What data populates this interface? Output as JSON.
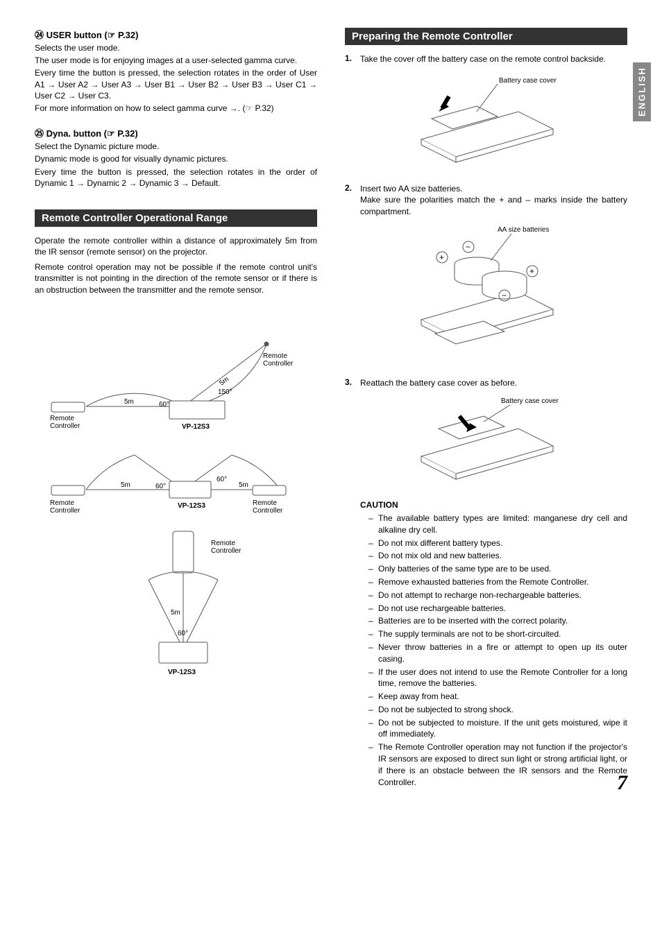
{
  "language_tab": "ENGLISH",
  "page_number": "7",
  "left": {
    "user": {
      "num": "㉔",
      "title_pre": "USER button (☞",
      "title_page": " P.32)",
      "lines": [
        "Selects the user mode.",
        "The user mode is for enjoying images at a user-selected gamma curve.",
        "Every time the button is pressed, the selection rotates in the order of User A1 → User A2 → User A3 → User B1 → User B2 → User B3 → User C1 → User C2 → User C3.",
        "For more information on how to select gamma curve →. (☞ P.32)"
      ]
    },
    "dyna": {
      "num": "㉕",
      "title_pre": "Dyna. button (☞",
      "title_page": " P.32)",
      "lines": [
        "Select the Dynamic picture mode.",
        "Dynamic mode is good for visually dynamic pictures.",
        "Every time the button is pressed, the selection rotates in the order of Dynamic 1 → Dynamic 2 → Dynamic 3 → Default."
      ]
    },
    "range": {
      "heading": "Remote Controller Operational Range",
      "para1": "Operate the remote controller within a distance of approximately 5m from the IR sensor (remote sensor) on the projector.",
      "para2": "Remote control operation may not be possible if the remote control unit's transmitter is not pointing in the direction of the remote sensor or if there is an obstruction between the transmitter and the remote sensor.",
      "labels": {
        "remote": "Remote Controller",
        "proj": "VP-12S3",
        "dist": "5m",
        "ang60": "60°",
        "ang150": "150°"
      }
    }
  },
  "right": {
    "heading": "Preparing the Remote Controller",
    "steps": [
      {
        "n": "1.",
        "text": "Take the cover off the battery case on the remote control backside.",
        "caption": "Battery case cover"
      },
      {
        "n": "2.",
        "text": "Insert two AA size batteries.",
        "text2": "Make sure the polarities match the + and – marks inside the battery compartment.",
        "caption": "AA size batteries"
      },
      {
        "n": "3.",
        "text": "Reattach the battery case cover as before.",
        "caption": "Battery case cover"
      }
    ],
    "caution_title": "CAUTION",
    "cautions": [
      "The available battery types are limited: manganese dry cell and alkaline dry cell.",
      "Do not mix different battery types.",
      "Do not mix old and new batteries.",
      "Only batteries of the same type are to be used.",
      "Remove exhausted batteries from the Remote Controller.",
      "Do not attempt to recharge non-rechargeable batteries.",
      "Do not use rechargeable batteries.",
      "Batteries are to be inserted with the correct polarity.",
      "The supply terminals are not to be short-circuited.",
      "Never throw batteries in a fire or attempt to open up its outer casing.",
      "If the user does not intend to use the Remote Controller for a long time, remove the batteries.",
      "Keep away from heat.",
      "Do not be subjected to strong shock.",
      "Do not be subjected to moisture. If the unit gets moistured, wipe it off immediately.",
      "The Remote Controller operation may not function if the projector's IR sensors are exposed to direct sun light or strong artificial light, or if there is an obstacle between the IR sensors and the Remote Controller."
    ]
  }
}
